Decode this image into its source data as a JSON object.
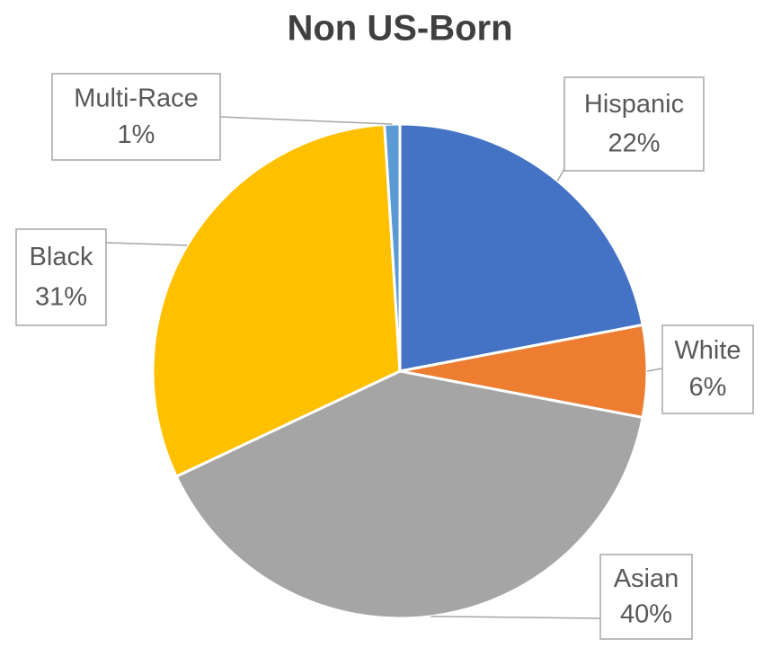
{
  "chart_data": {
    "type": "pie",
    "title": "Non US-Born",
    "categories": [
      "Hispanic",
      "White",
      "Asian",
      "Black",
      "Multi-Race"
    ],
    "values": [
      22,
      6,
      40,
      31,
      1
    ],
    "value_labels": [
      "22%",
      "6%",
      "40%",
      "31%",
      "1%"
    ],
    "colors": [
      "#4472c4",
      "#ed7d31",
      "#a5a5a5",
      "#ffc000",
      "#5b9bd5"
    ]
  }
}
